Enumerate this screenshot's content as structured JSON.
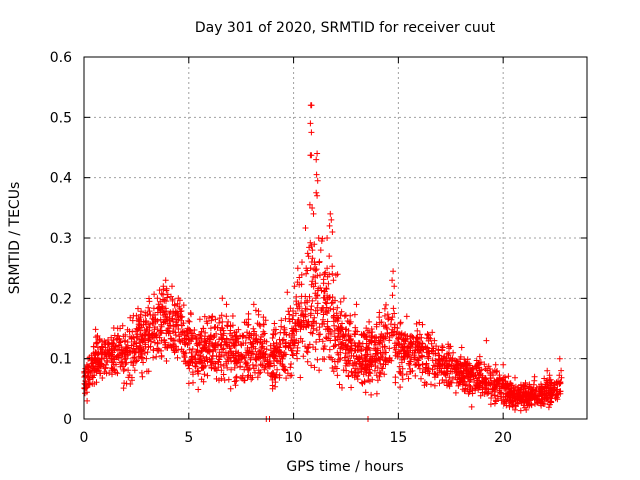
{
  "chart_data": {
    "type": "scatter",
    "title": "Day 301 of 2020, SRMTID for receiver cuut",
    "xlabel": "GPS time / hours",
    "ylabel": "SRMTID / TECUs",
    "xlim": [
      0,
      24
    ],
    "ylim": [
      0,
      0.6
    ],
    "x_ticks": [
      0,
      5,
      10,
      15,
      20
    ],
    "y_ticks": [
      0,
      0.1,
      0.2,
      0.3,
      0.4,
      0.5,
      0.6
    ],
    "x_tick_labels": [
      "0",
      "5",
      "10",
      "15",
      "20"
    ],
    "y_tick_labels": [
      "0",
      "0.1",
      "0.2",
      "0.3",
      "0.4",
      "0.5",
      "0.6"
    ],
    "grid": true,
    "marker": "+",
    "color": "#ff0000",
    "series": [
      {
        "name": "SRMTID",
        "profile_x": [
          0,
          0.5,
          1,
          1.5,
          2,
          2.5,
          3,
          3.5,
          4,
          4.5,
          5,
          5.5,
          6,
          6.5,
          7,
          7.5,
          8,
          8.5,
          9,
          9.5,
          10,
          10.5,
          10.8,
          11,
          11.5,
          12,
          12.5,
          13,
          13.5,
          14,
          14.5,
          15,
          15.5,
          16,
          16.5,
          17,
          17.5,
          18,
          18.5,
          19,
          19.5,
          20,
          20.5,
          21,
          21.5,
          22,
          22.5,
          22.8
        ],
        "profile_y": [
          0.06,
          0.1,
          0.1,
          0.11,
          0.1,
          0.13,
          0.14,
          0.15,
          0.16,
          0.15,
          0.12,
          0.11,
          0.11,
          0.12,
          0.12,
          0.1,
          0.11,
          0.12,
          0.1,
          0.11,
          0.14,
          0.18,
          0.2,
          0.19,
          0.17,
          0.15,
          0.12,
          0.11,
          0.1,
          0.11,
          0.13,
          0.12,
          0.11,
          0.11,
          0.1,
          0.09,
          0.09,
          0.08,
          0.07,
          0.07,
          0.06,
          0.05,
          0.04,
          0.04,
          0.04,
          0.04,
          0.05,
          0.06
        ],
        "spread": [
          0.02,
          0.035,
          0.035,
          0.04,
          0.04,
          0.045,
          0.05,
          0.05,
          0.05,
          0.05,
          0.045,
          0.045,
          0.045,
          0.045,
          0.045,
          0.045,
          0.045,
          0.045,
          0.045,
          0.045,
          0.05,
          0.08,
          0.12,
          0.1,
          0.08,
          0.06,
          0.05,
          0.045,
          0.045,
          0.045,
          0.05,
          0.045,
          0.04,
          0.04,
          0.035,
          0.03,
          0.03,
          0.03,
          0.025,
          0.025,
          0.025,
          0.02,
          0.02,
          0.02,
          0.02,
          0.02,
          0.02,
          0.02
        ],
        "points": [
          [
            10.82,
            0.52
          ],
          [
            10.86,
            0.52
          ],
          [
            10.8,
            0.49
          ],
          [
            10.85,
            0.475
          ],
          [
            10.8,
            0.437
          ],
          [
            10.85,
            0.437
          ],
          [
            11.12,
            0.44
          ],
          [
            11.08,
            0.43
          ],
          [
            11.1,
            0.405
          ],
          [
            11.15,
            0.395
          ],
          [
            11.08,
            0.375
          ],
          [
            11.12,
            0.37
          ],
          [
            10.78,
            0.355
          ],
          [
            10.95,
            0.34
          ],
          [
            11.75,
            0.34
          ],
          [
            11.8,
            0.33
          ],
          [
            11.72,
            0.32
          ],
          [
            11.85,
            0.31
          ],
          [
            11.2,
            0.3
          ],
          [
            11.6,
            0.3
          ],
          [
            10.9,
            0.28
          ],
          [
            11.3,
            0.28
          ],
          [
            11.7,
            0.27
          ],
          [
            10.4,
            0.26
          ],
          [
            10.2,
            0.25
          ],
          [
            10.6,
            0.25
          ],
          [
            11.0,
            0.26
          ],
          [
            11.5,
            0.24
          ],
          [
            12.1,
            0.24
          ],
          [
            11.9,
            0.23
          ],
          [
            14.75,
            0.245
          ],
          [
            14.7,
            0.23
          ],
          [
            14.8,
            0.22
          ],
          [
            14.72,
            0.205
          ],
          [
            3.9,
            0.23
          ],
          [
            3.8,
            0.215
          ],
          [
            4.2,
            0.22
          ],
          [
            4.5,
            0.2
          ],
          [
            6.6,
            0.2
          ],
          [
            6.8,
            0.19
          ],
          [
            8.1,
            0.19
          ],
          [
            8.2,
            0.18
          ],
          [
            3.5,
            0.2
          ],
          [
            9.7,
            0.21
          ],
          [
            10.05,
            0.22
          ],
          [
            12.4,
            0.2
          ],
          [
            13.0,
            0.19
          ],
          [
            15.4,
            0.17
          ],
          [
            16.0,
            0.16
          ],
          [
            19.2,
            0.13
          ],
          [
            20.0,
            0.09
          ],
          [
            22.7,
            0.1
          ],
          [
            21.5,
            0.07
          ],
          [
            22.1,
            0.08
          ],
          [
            8.7,
            0.0
          ],
          [
            8.85,
            0.0
          ],
          [
            13.55,
            0.0
          ],
          [
            0.15,
            0.03
          ],
          [
            0.05,
            0.05
          ],
          [
            5.2,
            0.06
          ],
          [
            7.0,
            0.05
          ],
          [
            9.0,
            0.05
          ],
          [
            13.7,
            0.04
          ],
          [
            18.5,
            0.02
          ],
          [
            20.3,
            0.02
          ],
          [
            21.1,
            0.015
          ]
        ]
      }
    ]
  }
}
